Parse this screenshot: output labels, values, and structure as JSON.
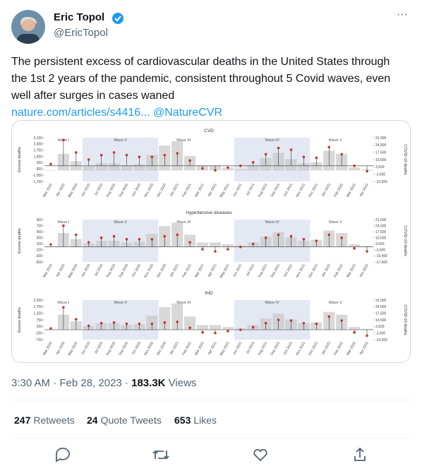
{
  "author": {
    "name": "Eric Topol",
    "handle": "@EricTopol"
  },
  "more": "···",
  "text": {
    "lines": [
      "The persistent excess of cardiovascular deaths in the United States through",
      "the 1st 2 years of the pandemic, consistent throughout 5 Covid waves, even",
      "well after surges in cases waned"
    ],
    "link": "nature.com/articles/s4416...",
    "mention": "@NatureCVR"
  },
  "image": {
    "charts": [
      {
        "type": "lollipop",
        "title": "CVD",
        "y_label": "Excess deaths",
        "y2_label": "COVID-19 deaths",
        "waves": [
          "Wave I",
          "Wave II",
          "Wave III",
          "Wave IV",
          "Wave V"
        ],
        "categories": [
          "Mar 2020",
          "Apr 2020",
          "May 2020",
          "Jun 2020",
          "Jul 2020",
          "Aug 2020",
          "Sep 2020",
          "Oct 2020",
          "Nov 2020",
          "Dec 2020",
          "Jan 2021",
          "Feb 2021",
          "Mar 2021",
          "Apr 2021",
          "May 2021",
          "Jun 2021",
          "Jul 2021",
          "Aug 2021",
          "Sep 2021",
          "Oct 2021",
          "Nov 2021",
          "Dec 2021",
          "Jan 2022",
          "Feb 2022",
          "Mar 2022",
          "Apr 2022"
        ],
        "series": [
          {
            "color": "#c0392b",
            "values": [
              200,
              2900,
              1500,
              700,
              1200,
              1500,
              1200,
              1000,
              1000,
              1200,
              1400,
              600,
              -300,
              -500,
              -200,
              0,
              400,
              1300,
              2000,
              1800,
              1000,
              900,
              2100,
              1300,
              0,
              -600
            ]
          },
          {
            "color": "#c8c8c8",
            "axis": "y2",
            "values": [
              500,
              16000,
              9000,
              4000,
              7000,
              7000,
              5000,
              6000,
              15000,
              24000,
              28000,
              14000,
              5000,
              5000,
              3000,
              1500,
              5000,
              12000,
              17000,
              11000,
              7000,
              8000,
              19000,
              16000,
              3000,
              1000
            ]
          }
        ],
        "ylim": [
          -1750,
          3150
        ],
        "yticks": [
          {
            "value": 3150,
            "label": "3,150"
          },
          {
            "value": 2450,
            "label": "2,450"
          },
          {
            "value": 1750,
            "label": "1,750"
          },
          {
            "value": 1050,
            "label": "1,050"
          },
          350,
          -350,
          {
            "value": -1050,
            "label": "-1,050"
          },
          {
            "value": -1750,
            "label": "-1,750"
          }
        ],
        "y2lim": [
          -10500,
          31500
        ],
        "y2ticks": [
          {
            "value": 31500,
            "label": "31,500"
          },
          {
            "value": 24500,
            "label": "24,500"
          },
          {
            "value": 17500,
            "label": "17,500"
          },
          {
            "value": 10500,
            "label": "10,500"
          },
          {
            "value": 3500,
            "label": "3,500"
          },
          {
            "value": -3500,
            "label": "-3,500"
          },
          {
            "value": -10500,
            "label": "-10,500"
          }
        ]
      },
      {
        "type": "lollipop",
        "title": "Hypertensive diseases",
        "y_label": "Excess deaths",
        "y2_label": "COVID-19 deaths",
        "waves": [
          "Wave I",
          "Wave II",
          "Wave III",
          "Wave IV",
          "Wave V"
        ],
        "categories": [
          "Mar 2020",
          "Apr 2020",
          "May 2020",
          "Jun 2020",
          "Jul 2020",
          "Aug 2020",
          "Sep 2020",
          "Oct 2020",
          "Nov 2020",
          "Dec 2020",
          "Jan 2021",
          "Feb 2021",
          "Mar 2021",
          "Apr 2021",
          "May 2021",
          "Jun 2021",
          "Jul 2021",
          "Aug 2021",
          "Sep 2021",
          "Oct 2021",
          "Nov 2021",
          "Dec 2021",
          "Jan 2022",
          "Feb 2022",
          "Mar 2022",
          "Apr 2022"
        ],
        "series": [
          {
            "color": "#c0392b",
            "values": [
              80,
              700,
              400,
              150,
              300,
              350,
              250,
              250,
              250,
              350,
              400,
              150,
              -80,
              -150,
              -80,
              0,
              100,
              300,
              400,
              350,
              250,
              200,
              400,
              300,
              -50,
              -150
            ]
          },
          {
            "color": "#c8c8c8",
            "axis": "y2",
            "values": [
              500,
              16000,
              9000,
              4000,
              7000,
              7000,
              5000,
              6000,
              15000,
              24000,
              28000,
              14000,
              5000,
              5000,
              3000,
              1500,
              5000,
              12000,
              17000,
              11000,
              7000,
              8000,
              19000,
              16000,
              3000,
              1000
            ]
          }
        ],
        "ylim": [
          -500,
          900
        ],
        "yticks": [
          900,
          700,
          500,
          300,
          100,
          -100,
          -300,
          -500
        ],
        "y2lim": [
          -17500,
          31500
        ],
        "y2ticks": [
          {
            "value": 31500,
            "label": "31,500"
          },
          {
            "value": 24500,
            "label": "24,500"
          },
          {
            "value": 17500,
            "label": "17,500"
          },
          {
            "value": 10500,
            "label": "10,500"
          },
          {
            "value": 3500,
            "label": "3,500"
          },
          {
            "value": -3500,
            "label": "-3,500"
          },
          {
            "value": -10500,
            "label": "-10,500"
          },
          {
            "value": -17500,
            "label": "-17,500"
          }
        ]
      },
      {
        "type": "lollipop",
        "title": "IHD",
        "y_label": "Excess deaths",
        "y2_label": "COVID-19 deaths",
        "waves": [
          "Wave I",
          "Wave II",
          "Wave III",
          "Wave IV",
          "Wave V"
        ],
        "categories": [
          "Mar 2020",
          "Apr 2020",
          "May 2020",
          "Jun 2020",
          "Jul 2020",
          "Aug 2020",
          "Sep 2020",
          "Oct 2020",
          "Nov 2020",
          "Dec 2020",
          "Jan 2021",
          "Feb 2021",
          "Mar 2021",
          "Apr 2021",
          "May 2021",
          "Jun 2021",
          "Jul 2021",
          "Aug 2021",
          "Sep 2021",
          "Oct 2021",
          "Nov 2021",
          "Dec 2021",
          "Jan 2022",
          "Feb 2022",
          "Mar 2022",
          "Apr 2022"
        ],
        "series": [
          {
            "color": "#c0392b",
            "values": [
              100,
              1700,
              800,
              300,
              500,
              550,
              450,
              450,
              450,
              550,
              600,
              150,
              -200,
              -250,
              -100,
              0,
              200,
              500,
              750,
              700,
              500,
              450,
              1000,
              700,
              -200,
              -450
            ]
          },
          {
            "color": "#c8c8c8",
            "axis": "y2",
            "values": [
              500,
              16000,
              9000,
              4000,
              7000,
              7000,
              5000,
              6000,
              15000,
              24000,
              28000,
              14000,
              5000,
              5000,
              3000,
              1500,
              5000,
              12000,
              17000,
              11000,
              7000,
              8000,
              19000,
              16000,
              3000,
              1000
            ]
          }
        ],
        "ylim": [
          -750,
          2250
        ],
        "yticks": [
          {
            "value": 2250,
            "label": "2,250"
          },
          {
            "value": 1750,
            "label": "1,750"
          },
          {
            "value": 1250,
            "label": "1,250"
          },
          750,
          250,
          -250,
          -750
        ],
        "y2lim": [
          -10500,
          31500
        ],
        "y2ticks": [
          {
            "value": 31500,
            "label": "31,500"
          },
          {
            "value": 24500,
            "label": "24,500"
          },
          {
            "value": 17500,
            "label": "17,500"
          },
          {
            "value": 10500,
            "label": "10,500"
          },
          {
            "value": 3500,
            "label": "3,500"
          },
          {
            "value": -3500,
            "label": "-3,500"
          },
          {
            "value": -10500,
            "label": "-10,500"
          }
        ]
      }
    ]
  },
  "timestamp": "3:30 AM · Feb 28, 2023 · ",
  "views": {
    "count": "183.3K",
    "label": "Views"
  },
  "stats": [
    {
      "count": 247,
      "label": "Retweets"
    },
    {
      "count": 24,
      "label": "Quote Tweets"
    },
    {
      "count": 653,
      "label": "Likes"
    }
  ]
}
